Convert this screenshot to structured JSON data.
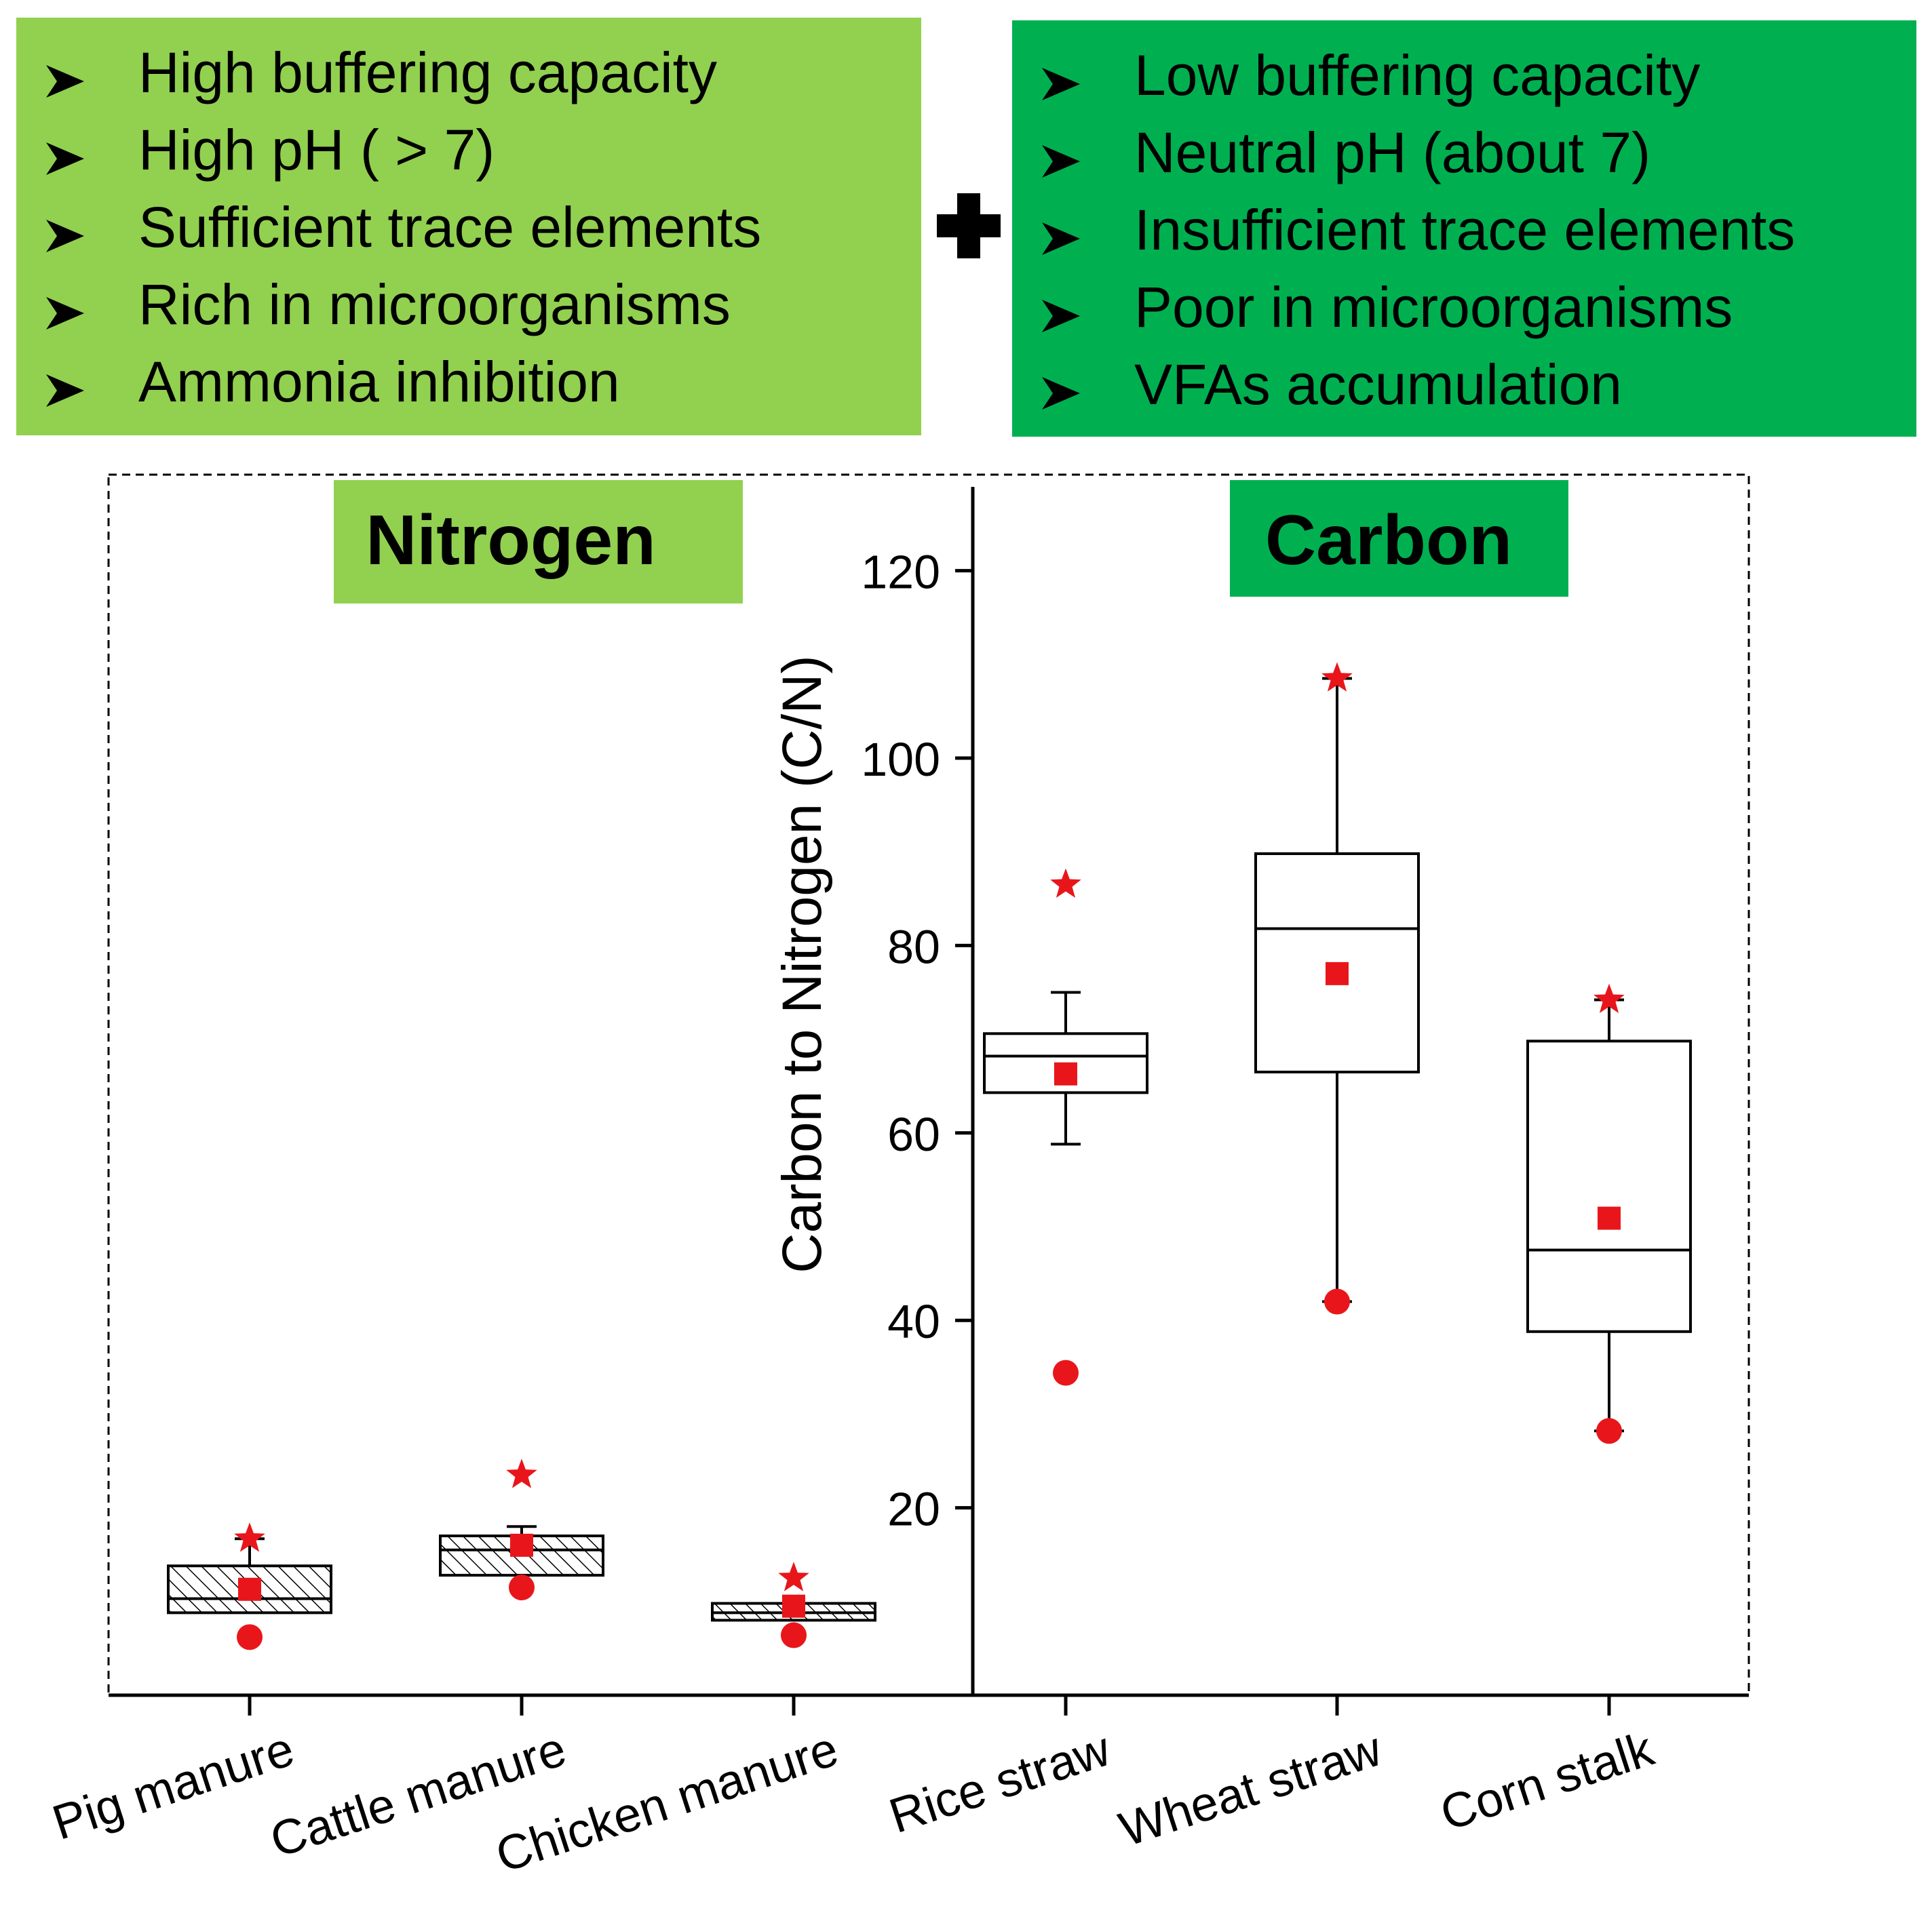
{
  "colors": {
    "nitrogen_panel": "#92d050",
    "carbon_panel": "#00b050",
    "marker": "#e8161b",
    "ink": "#000000"
  },
  "nitrogen_panel": {
    "bullet_icon": "arrowhead-bullet-icon",
    "bullets": [
      "High buffering capacity",
      "High pH ( > 7)",
      "Sufficient trace elements",
      "Rich in microorganisms",
      "Ammonia inhibition"
    ]
  },
  "combine_icon": "plus-icon",
  "carbon_panel": {
    "bullet_icon": "arrowhead-bullet-icon",
    "bullets": [
      "Low buffering capacity",
      "Neutral pH (about 7)",
      "Insufficient trace elements",
      "Poor in microorganisms",
      "VFAs accumulation"
    ]
  },
  "chart_data": {
    "type": "box",
    "ylabel": "Carbon to Nitrogen (C/N)",
    "xlabel": "",
    "ylim": [
      0,
      130
    ],
    "yticks": [
      20,
      40,
      60,
      80,
      100,
      120
    ],
    "group_labels": {
      "nitrogen": "Nitrogen",
      "carbon": "Carbon"
    },
    "categories": [
      "Pig manure",
      "Cattle manure",
      "Chicken manure",
      "Rice straw",
      "Wheat straw",
      "Corn stalk"
    ],
    "boxes": [
      {
        "category": "Pig manure",
        "group": "nitrogen",
        "whisker_low": 8.8,
        "q1": 8.8,
        "median": 10.3,
        "q3": 13.8,
        "whisker_high": 16.7,
        "mean": 11.3,
        "min": 6.2,
        "max": 16.7,
        "hatched": true
      },
      {
        "category": "Cattle manure",
        "group": "nitrogen",
        "whisker_low": 12.8,
        "q1": 12.8,
        "median": 15.5,
        "q3": 17.0,
        "whisker_high": 18.0,
        "mean": 16.0,
        "min": 11.5,
        "max": 23.5,
        "hatched": true
      },
      {
        "category": "Chicken manure",
        "group": "nitrogen",
        "whisker_low": 8.0,
        "q1": 8.0,
        "median": 8.8,
        "q3": 9.8,
        "whisker_high": 9.8,
        "mean": 9.5,
        "min": 6.4,
        "max": 12.5,
        "hatched": true
      },
      {
        "category": "Rice straw",
        "group": "carbon",
        "whisker_low": 58.8,
        "q1": 64.3,
        "median": 68.2,
        "q3": 70.6,
        "whisker_high": 75.0,
        "mean": 66.3,
        "min": 34.4,
        "max": 86.5,
        "hatched": false
      },
      {
        "category": "Wheat straw",
        "group": "carbon",
        "whisker_low": 42.0,
        "q1": 66.5,
        "median": 81.8,
        "q3": 89.8,
        "whisker_high": 108.5,
        "mean": 77.0,
        "min": 42.0,
        "max": 108.5,
        "hatched": false
      },
      {
        "category": "Corn stalk",
        "group": "carbon",
        "whisker_low": 28.2,
        "q1": 38.8,
        "median": 47.5,
        "q3": 69.8,
        "whisker_high": 74.2,
        "mean": 50.9,
        "min": 28.2,
        "max": 74.2,
        "hatched": false
      }
    ],
    "marker_legend": {
      "mean": "square",
      "min": "circle",
      "max": "star"
    }
  }
}
